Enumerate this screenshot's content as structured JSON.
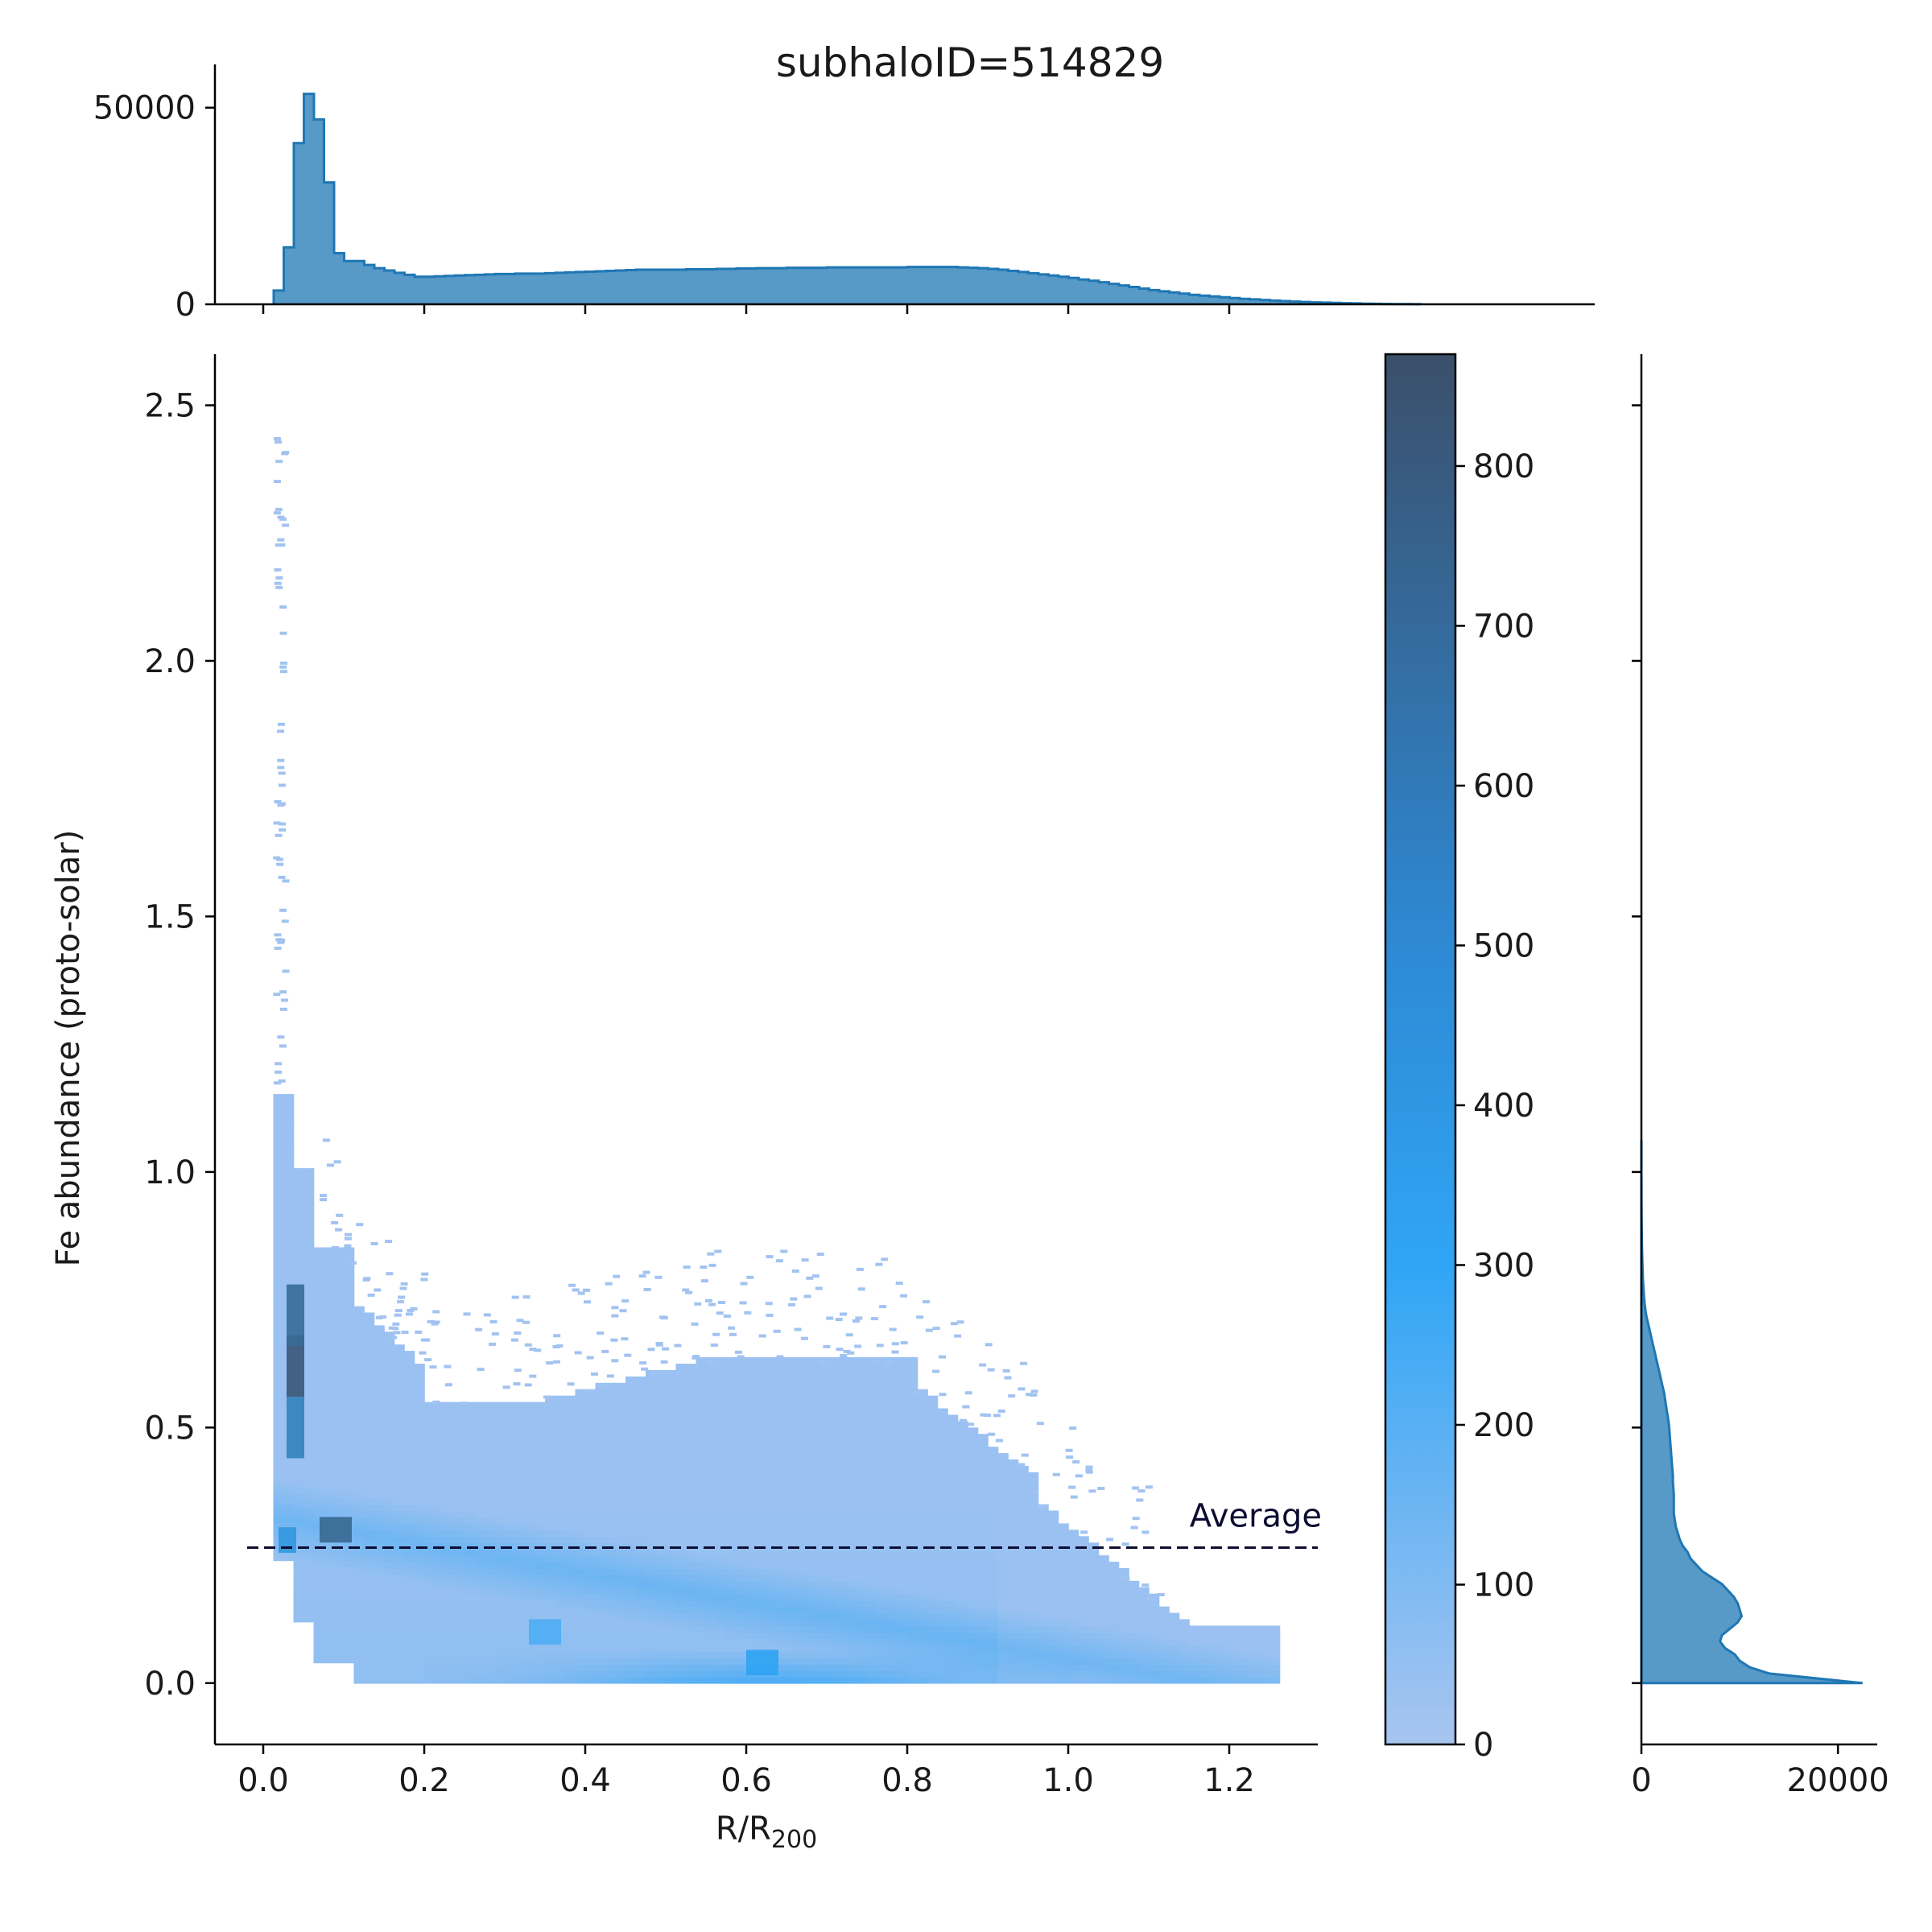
{
  "title": "subhaloID=514829",
  "chart_data": [
    {
      "type": "heatmap",
      "name": "joint-2d-histogram",
      "xlabel": "R/R",
      "xlabel_subscript": "200",
      "ylabel": "Fe abundance (proto-solar)",
      "xlim": [
        -0.06,
        1.31
      ],
      "ylim": [
        -0.12,
        2.6
      ],
      "xticks": [
        "0.0",
        "0.2",
        "0.4",
        "0.6",
        "0.8",
        "1.0",
        "1.2"
      ],
      "xtick_values": [
        0.0,
        0.2,
        0.4,
        0.6,
        0.8,
        1.0,
        1.2
      ],
      "yticks": [
        "0.0",
        "0.5",
        "1.0",
        "1.5",
        "2.0",
        "2.5"
      ],
      "ytick_values": [
        0.0,
        0.5,
        1.0,
        1.5,
        2.0,
        2.5
      ],
      "hot_spots": [
        {
          "x": 0.04,
          "y": 0.62,
          "count": 830
        },
        {
          "x": 0.04,
          "y": 0.72,
          "count": 700
        },
        {
          "x": 0.04,
          "y": 0.5,
          "count": 560
        },
        {
          "x": 0.09,
          "y": 0.3,
          "count": 720
        },
        {
          "x": 0.03,
          "y": 0.28,
          "count": 430
        },
        {
          "x": 0.62,
          "y": 0.04,
          "count": 360
        },
        {
          "x": 0.35,
          "y": 0.1,
          "count": 260
        }
      ],
      "reference_line": {
        "y": 0.265,
        "label": "Average",
        "style": "dashed",
        "color": "#0d0d33"
      },
      "colormap": [
        "#a8c5f0",
        "#2fa5f5",
        "#3b4f6a"
      ],
      "grid": false
    },
    {
      "type": "bar",
      "name": "top-marginal-histogram",
      "x_bin_edges_start": 0.013,
      "bin_width": 0.0125,
      "values": [
        3500,
        14500,
        41000,
        53500,
        47000,
        31000,
        13000,
        11000,
        11000,
        10000,
        9200,
        8600,
        8000,
        7500,
        7000,
        7000,
        7100,
        7200,
        7300,
        7400,
        7500,
        7600,
        7700,
        7700,
        7800,
        7800,
        7800,
        7900,
        8000,
        8100,
        8200,
        8300,
        8400,
        8500,
        8600,
        8700,
        8800,
        8800,
        8800,
        8800,
        8800,
        8900,
        8900,
        8900,
        9000,
        9000,
        9100,
        9100,
        9200,
        9200,
        9200,
        9300,
        9300,
        9300,
        9300,
        9400,
        9400,
        9400,
        9400,
        9400,
        9400,
        9400,
        9400,
        9500,
        9500,
        9500,
        9500,
        9500,
        9400,
        9300,
        9200,
        9000,
        8800,
        8500,
        8200,
        7900,
        7600,
        7300,
        7000,
        6700,
        6300,
        6000,
        5600,
        5200,
        4800,
        4400,
        4000,
        3600,
        3300,
        3000,
        2700,
        2400,
        2200,
        2000,
        1800,
        1600,
        1400,
        1250,
        1100,
        950,
        820,
        700,
        600,
        500,
        420,
        350,
        280,
        220,
        170,
        130,
        90,
        60,
        40,
        25
      ],
      "yticks": [
        "0",
        "50000"
      ],
      "ytick_values": [
        0,
        50000
      ],
      "ylim": [
        0,
        61000
      ],
      "color": "#1f77b4"
    },
    {
      "type": "area",
      "name": "right-marginal-histogram",
      "y_bin_edges_start": 0.0,
      "bin_width": 0.0125,
      "values": [
        22500,
        13000,
        11000,
        10000,
        9500,
        8500,
        8000,
        8200,
        9000,
        9800,
        10200,
        10000,
        9800,
        9400,
        8800,
        8200,
        7200,
        6200,
        5600,
        5000,
        4700,
        4200,
        3900,
        3700,
        3500,
        3400,
        3300,
        3300,
        3300,
        3300,
        3250,
        3200,
        3200,
        3150,
        3100,
        3050,
        3000,
        2950,
        2900,
        2850,
        2800,
        2700,
        2600,
        2500,
        2400,
        2300,
        2150,
        2000,
        1850,
        1700,
        1550,
        1400,
        1250,
        1100,
        950,
        800,
        650,
        500,
        400,
        320,
        260,
        220,
        180,
        150,
        130,
        110,
        90,
        75,
        60,
        50,
        40,
        32,
        26,
        20,
        16,
        12,
        9,
        7,
        5,
        4,
        3,
        2,
        2,
        1,
        1
      ],
      "xticks": [
        "0",
        "20000"
      ],
      "xtick_values": [
        0,
        20000
      ],
      "xlim": [
        0,
        24000
      ],
      "color": "#1f77b4"
    },
    {
      "type": "colorbar",
      "name": "count-colorbar",
      "ticks": [
        "0",
        "100",
        "200",
        "300",
        "400",
        "500",
        "600",
        "700",
        "800"
      ],
      "tick_values": [
        0,
        100,
        200,
        300,
        400,
        500,
        600,
        700,
        800
      ],
      "range": [
        0,
        870
      ],
      "colormap": [
        "#a8c5f0",
        "#2fa5f5",
        "#3b4f6a"
      ]
    }
  ]
}
